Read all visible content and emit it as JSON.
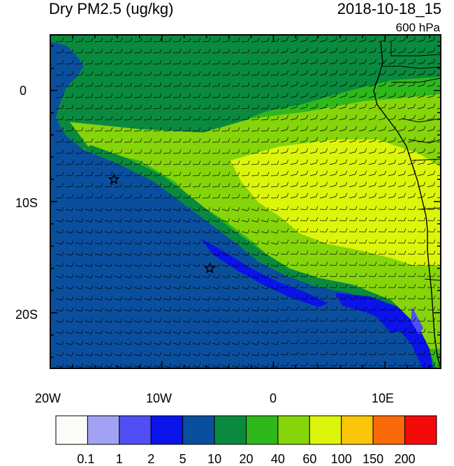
{
  "header": {
    "variable": "Dry PM2.5 (ug/kg)",
    "datetime": "2018-10-18_15",
    "level": "600 hPa"
  },
  "axes": {
    "lat_labels": [
      "0",
      "10S",
      "20S"
    ],
    "lon_labels": [
      "20W",
      "10W",
      "0",
      "10E"
    ],
    "lon_range": [
      -20,
      15
    ],
    "lat_range": [
      -25,
      5
    ]
  },
  "colorbar": {
    "colors": [
      "#fbfbf7",
      "#a2a2f4",
      "#4f4ff5",
      "#0a13e9",
      "#0a4f9e",
      "#0a8a3e",
      "#2fb81c",
      "#86d40a",
      "#dcf50a",
      "#fbc50a",
      "#fb6a0a",
      "#f50a0a"
    ],
    "tick_labels": [
      "0.1",
      "1",
      "2",
      "5",
      "10",
      "20",
      "40",
      "60",
      "100",
      "150",
      "200"
    ]
  },
  "markers": {
    "icon": "star-icon",
    "locations": [
      {
        "lon": -14.3,
        "lat": -8.0
      },
      {
        "lon": -5.7,
        "lat": -16.0
      }
    ]
  }
}
